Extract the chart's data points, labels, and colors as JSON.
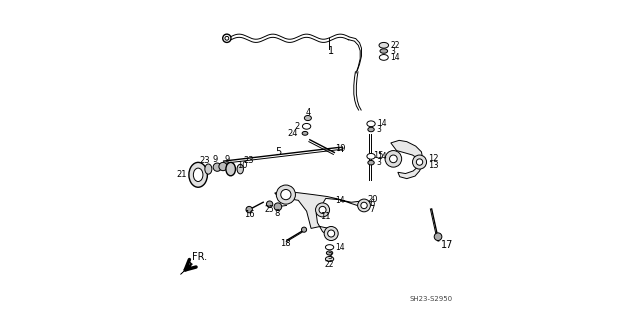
{
  "bg_color": "#ffffff",
  "line_color": "#000000",
  "fig_width": 6.4,
  "fig_height": 3.19,
  "dpi": 100,
  "watermark": "SH23-S2950",
  "direction_label": "FR."
}
